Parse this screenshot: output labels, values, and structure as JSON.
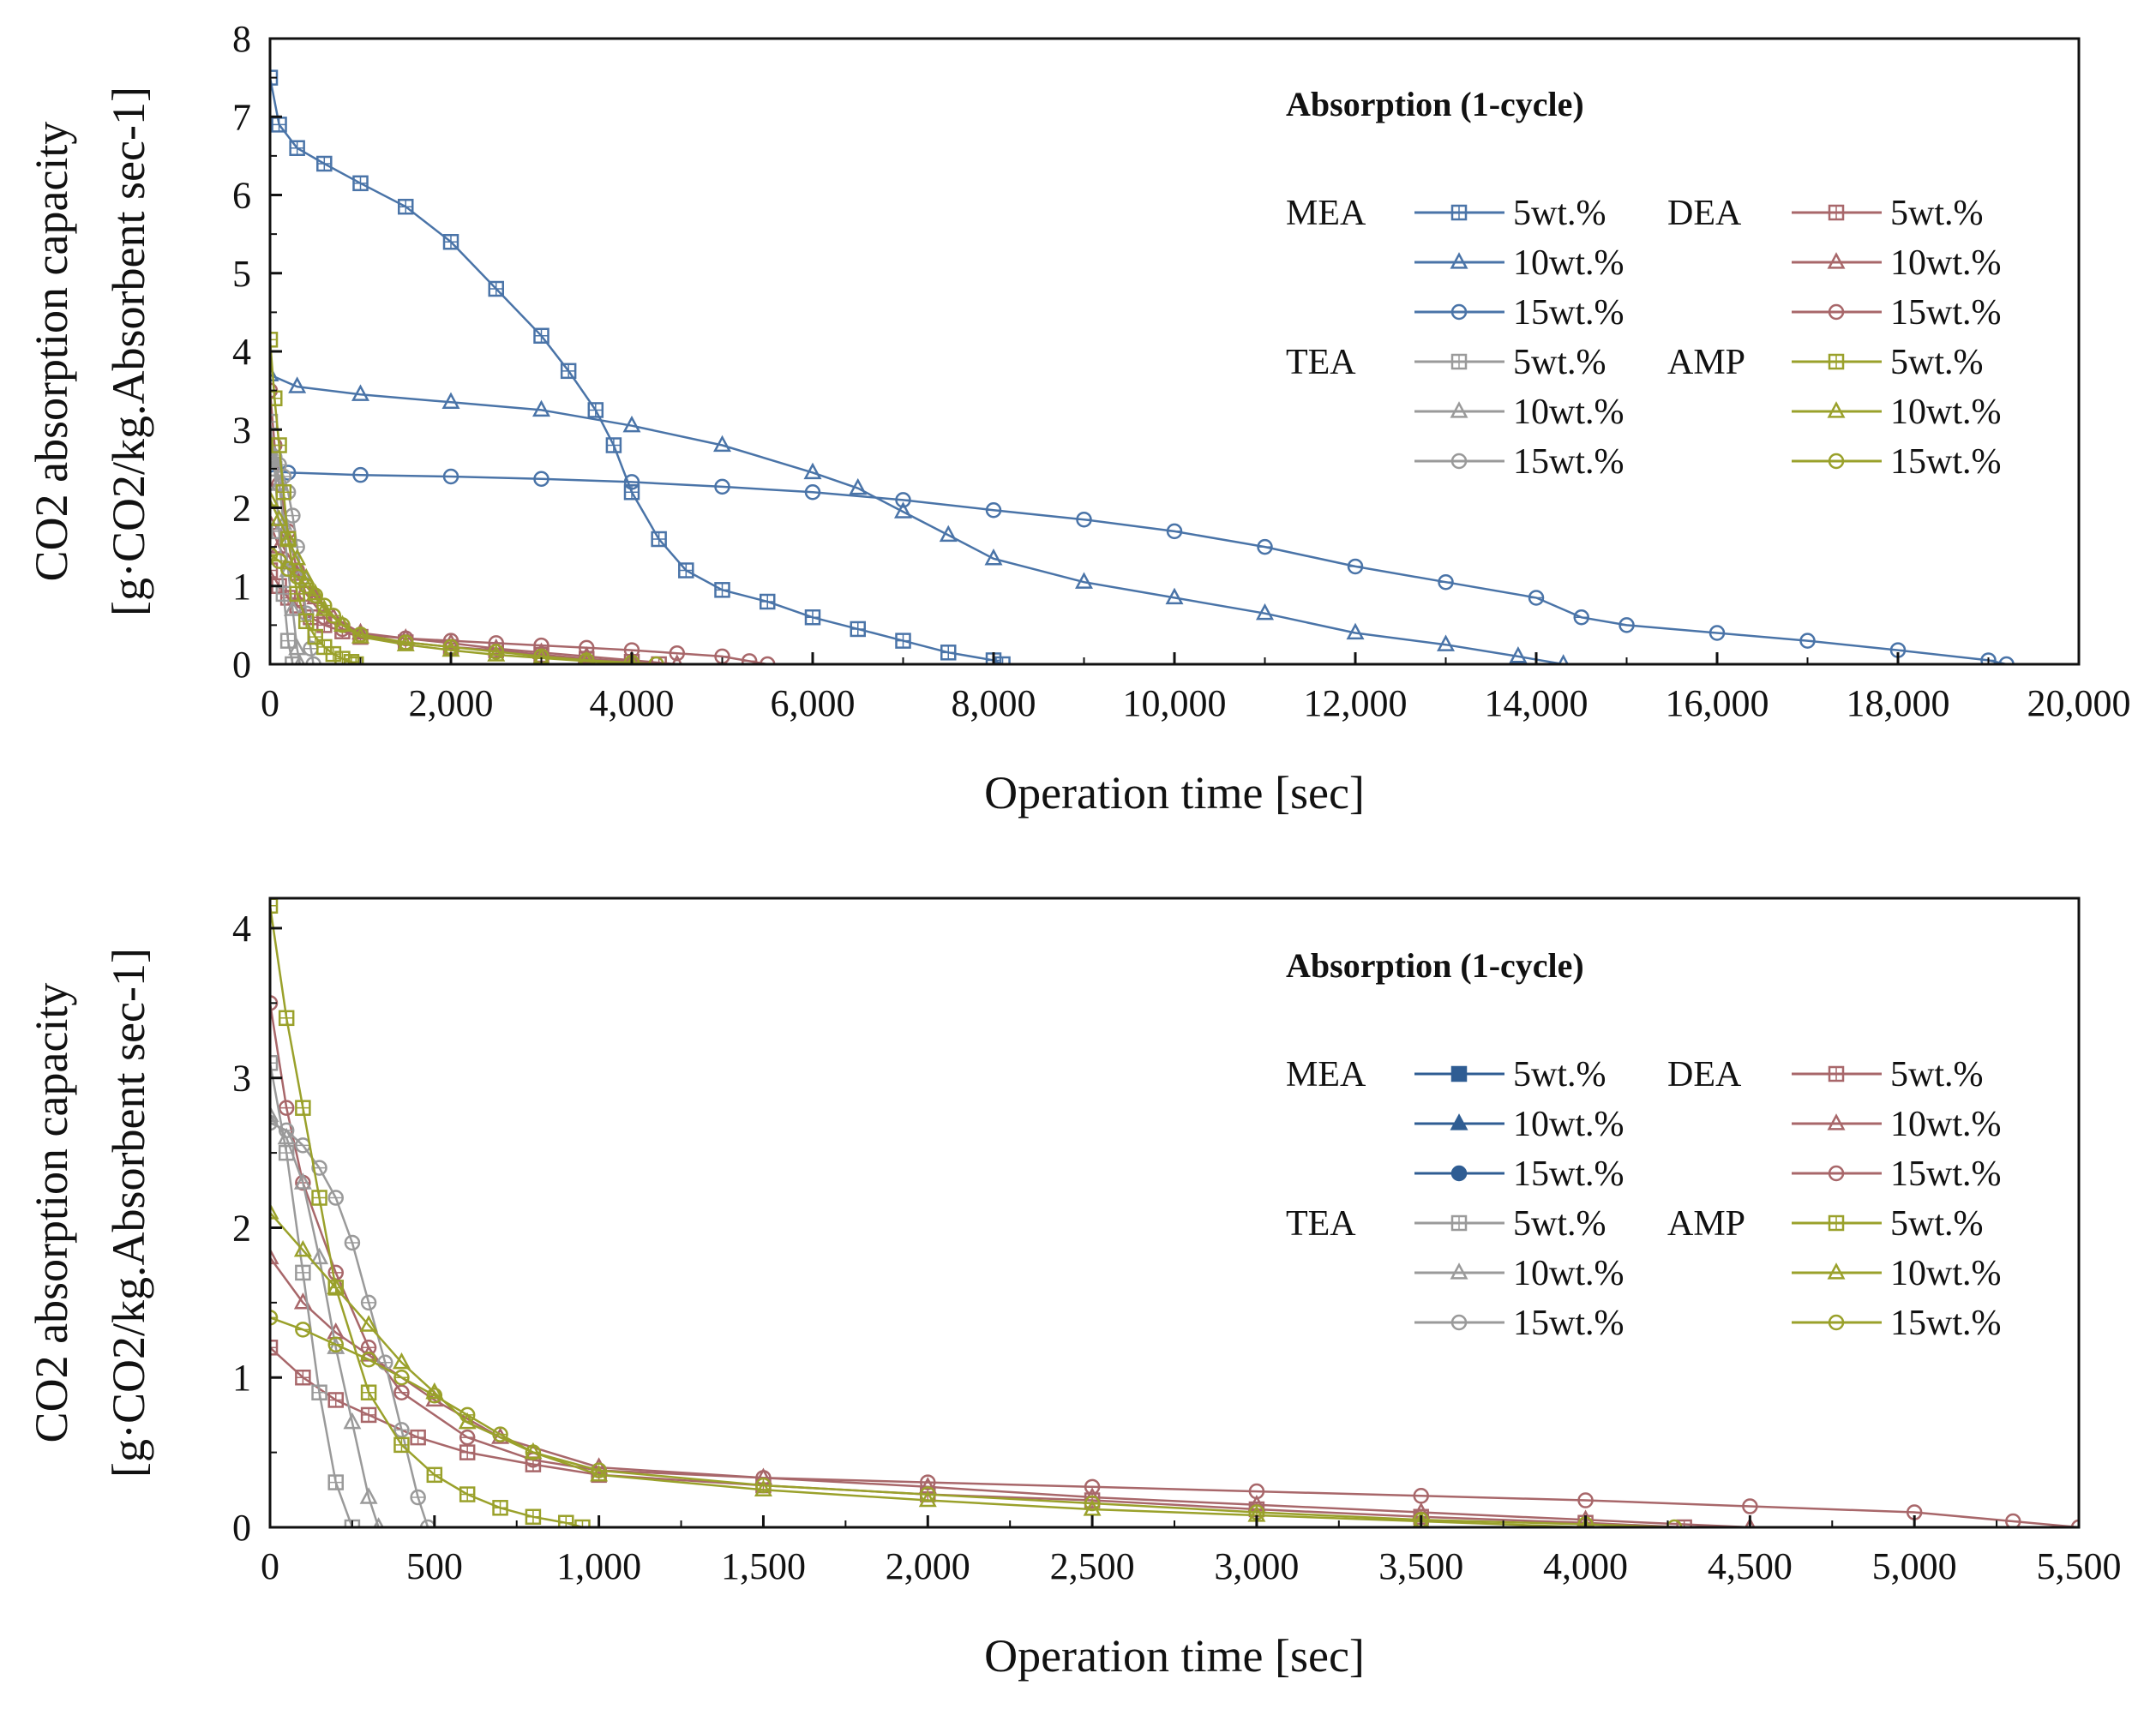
{
  "chart_data": [
    {
      "type": "line",
      "title": "",
      "xlabel": "Operation time [sec]",
      "ylabel_line1": "CO2 absorption capacity",
      "ylabel_line2": "[g·CO2/kg.Absorbent sec-1]",
      "xlim": [
        0,
        20000
      ],
      "ylim": [
        0,
        8
      ],
      "xticks": [
        0,
        2000,
        4000,
        6000,
        8000,
        10000,
        12000,
        14000,
        16000,
        18000,
        20000
      ],
      "xtick_labels": [
        "0",
        "2,000",
        "4,000",
        "6,000",
        "8,000",
        "10,000",
        "12,000",
        "14,000",
        "16,000",
        "18,000",
        "20,000"
      ],
      "yticks": [
        0,
        1,
        2,
        3,
        4,
        5,
        6,
        7,
        8
      ],
      "ytick_labels": [
        "0",
        "1",
        "2",
        "3",
        "4",
        "5",
        "6",
        "7",
        "8"
      ],
      "legend_title": "Absorption (1-cycle)",
      "legend_groups": [
        "MEA",
        "DEA",
        "TEA",
        "AMP"
      ],
      "series": [
        {
          "name": "MEA 5wt.%",
          "group": "MEA",
          "label": "5wt.%",
          "color": "#4a74a8",
          "marker": "square",
          "filled": false,
          "x": [
            0,
            100,
            300,
            600,
            1000,
            1500,
            2000,
            2500,
            3000,
            3300,
            3600,
            3800,
            4000,
            4300,
            4600,
            5000,
            5500,
            6000,
            6500,
            7000,
            7500,
            8000,
            8100
          ],
          "y": [
            7.5,
            6.9,
            6.6,
            6.4,
            6.15,
            5.85,
            5.4,
            4.8,
            4.2,
            3.75,
            3.25,
            2.8,
            2.2,
            1.6,
            1.2,
            0.95,
            0.8,
            0.6,
            0.45,
            0.3,
            0.15,
            0.05,
            0.0
          ]
        },
        {
          "name": "MEA 10wt.%",
          "group": "MEA",
          "label": "10wt.%",
          "color": "#4a74a8",
          "marker": "triangle",
          "filled": false,
          "x": [
            0,
            300,
            1000,
            2000,
            3000,
            4000,
            5000,
            6000,
            6500,
            7000,
            7500,
            8000,
            9000,
            10000,
            11000,
            12000,
            13000,
            13800,
            14300
          ],
          "y": [
            3.7,
            3.55,
            3.45,
            3.35,
            3.25,
            3.05,
            2.8,
            2.45,
            2.25,
            1.95,
            1.65,
            1.35,
            1.05,
            0.85,
            0.65,
            0.4,
            0.25,
            0.1,
            0.0
          ]
        },
        {
          "name": "MEA 15wt.%",
          "group": "MEA",
          "label": "15wt.%",
          "color": "#4a74a8",
          "marker": "circle",
          "filled": false,
          "x": [
            0,
            200,
            1000,
            2000,
            3000,
            4000,
            5000,
            6000,
            7000,
            8000,
            9000,
            10000,
            11000,
            12000,
            13000,
            14000,
            14500,
            15000,
            16000,
            17000,
            18000,
            19000,
            19200
          ],
          "y": [
            2.55,
            2.45,
            2.42,
            2.4,
            2.37,
            2.33,
            2.27,
            2.2,
            2.1,
            1.97,
            1.85,
            1.7,
            1.5,
            1.25,
            1.05,
            0.85,
            0.6,
            0.5,
            0.4,
            0.3,
            0.18,
            0.05,
            0.0
          ]
        },
        {
          "name": "DEA 5wt.%",
          "group": "DEA",
          "label": "5wt.%",
          "color": "#a8676a",
          "marker": "square",
          "filled": false,
          "x": [
            0,
            100,
            200,
            300,
            450,
            600,
            800,
            1000,
            1500,
            2000,
            2500,
            3000,
            3500,
            4000,
            4300
          ],
          "y": [
            1.2,
            1.0,
            0.85,
            0.75,
            0.6,
            0.5,
            0.42,
            0.35,
            0.28,
            0.22,
            0.18,
            0.12,
            0.07,
            0.03,
            0.0
          ]
        },
        {
          "name": "DEA 10wt.%",
          "group": "DEA",
          "label": "10wt.%",
          "color": "#a8676a",
          "marker": "triangle",
          "filled": false,
          "x": [
            0,
            100,
            200,
            300,
            500,
            700,
            1000,
            1500,
            2000,
            2500,
            3000,
            3500,
            4000,
            4500
          ],
          "y": [
            1.8,
            1.5,
            1.3,
            1.15,
            0.85,
            0.6,
            0.4,
            0.33,
            0.27,
            0.2,
            0.15,
            0.1,
            0.05,
            0.0
          ]
        },
        {
          "name": "DEA 15wt.%",
          "group": "DEA",
          "label": "15wt.%",
          "color": "#a8676a",
          "marker": "circle",
          "filled": false,
          "x": [
            0,
            50,
            100,
            200,
            300,
            400,
            600,
            800,
            1000,
            1500,
            2000,
            2500,
            3000,
            3500,
            4000,
            4500,
            5000,
            5300,
            5500
          ],
          "y": [
            3.5,
            2.8,
            2.3,
            1.7,
            1.2,
            0.9,
            0.6,
            0.45,
            0.38,
            0.33,
            0.3,
            0.27,
            0.24,
            0.21,
            0.18,
            0.14,
            0.1,
            0.04,
            0.0
          ]
        },
        {
          "name": "TEA 5wt.%",
          "group": "TEA",
          "label": "5wt.%",
          "color": "#9a9a9a",
          "marker": "square",
          "filled": false,
          "x": [
            0,
            50,
            100,
            150,
            200,
            250
          ],
          "y": [
            3.1,
            2.5,
            1.7,
            0.9,
            0.3,
            0.0
          ]
        },
        {
          "name": "TEA 10wt.%",
          "group": "TEA",
          "label": "10wt.%",
          "color": "#9a9a9a",
          "marker": "triangle",
          "filled": false,
          "x": [
            0,
            50,
            100,
            150,
            200,
            250,
            300,
            330
          ],
          "y": [
            2.75,
            2.6,
            2.3,
            1.8,
            1.2,
            0.7,
            0.2,
            0.0
          ]
        },
        {
          "name": "TEA 15wt.%",
          "group": "TEA",
          "label": "15wt.%",
          "color": "#9a9a9a",
          "marker": "circle",
          "filled": false,
          "x": [
            0,
            50,
            100,
            150,
            200,
            250,
            300,
            350,
            400,
            450,
            480
          ],
          "y": [
            2.7,
            2.65,
            2.55,
            2.4,
            2.2,
            1.9,
            1.5,
            1.1,
            0.65,
            0.2,
            0.0
          ]
        },
        {
          "name": "AMP 5wt.%",
          "group": "AMP",
          "label": "5wt.%",
          "color": "#9aa12b",
          "marker": "square",
          "filled": false,
          "x": [
            0,
            50,
            100,
            150,
            200,
            300,
            400,
            500,
            600,
            700,
            800,
            900,
            950
          ],
          "y": [
            4.15,
            3.4,
            2.8,
            2.2,
            1.6,
            0.9,
            0.55,
            0.35,
            0.22,
            0.13,
            0.07,
            0.03,
            0.0
          ]
        },
        {
          "name": "AMP 10wt.%",
          "group": "AMP",
          "label": "10wt.%",
          "color": "#9aa12b",
          "marker": "triangle",
          "filled": false,
          "x": [
            0,
            100,
            200,
            300,
            400,
            500,
            600,
            800,
            1000,
            1500,
            2000,
            2500,
            3000,
            3500,
            4000
          ],
          "y": [
            2.1,
            1.85,
            1.6,
            1.35,
            1.1,
            0.9,
            0.7,
            0.5,
            0.35,
            0.25,
            0.18,
            0.12,
            0.08,
            0.04,
            0.0
          ]
        },
        {
          "name": "AMP 15wt.%",
          "group": "AMP",
          "label": "15wt.%",
          "color": "#9aa12b",
          "marker": "circle",
          "filled": false,
          "x": [
            0,
            100,
            200,
            300,
            400,
            500,
            600,
            700,
            800,
            1000,
            1500,
            2000,
            2500,
            3000,
            3500,
            4000,
            4270
          ],
          "y": [
            1.4,
            1.32,
            1.22,
            1.12,
            1.0,
            0.88,
            0.75,
            0.62,
            0.5,
            0.38,
            0.28,
            0.22,
            0.16,
            0.1,
            0.05,
            0.02,
            0.0
          ]
        }
      ]
    },
    {
      "type": "line",
      "title": "",
      "xlabel": "Operation time [sec]",
      "ylabel_line1": "CO2 absorption capacity",
      "ylabel_line2": "[g·CO2/kg.Absorbent sec-1]",
      "xlim": [
        0,
        5500
      ],
      "ylim": [
        0,
        4.2
      ],
      "xticks": [
        0,
        500,
        1000,
        1500,
        2000,
        2500,
        3000,
        3500,
        4000,
        4500,
        5000,
        5500
      ],
      "xtick_labels": [
        "0",
        "500",
        "1,000",
        "1,500",
        "2,000",
        "2,500",
        "3,000",
        "3,500",
        "4,000",
        "4,500",
        "5,000",
        "5,500"
      ],
      "yticks": [
        0,
        1,
        2,
        3,
        4
      ],
      "ytick_labels": [
        "0",
        "1",
        "2",
        "3",
        "4"
      ],
      "legend_title": "Absorption (1-cycle)",
      "legend_groups": [
        "MEA",
        "DEA",
        "TEA",
        "AMP"
      ],
      "series": [
        {
          "name": "MEA 5wt.%",
          "group": "MEA",
          "label": "5wt.%",
          "color": "#2f5d93",
          "marker": "square",
          "filled": true,
          "x": [],
          "y": []
        },
        {
          "name": "MEA 10wt.%",
          "group": "MEA",
          "label": "10wt.%",
          "color": "#2f5d93",
          "marker": "triangle",
          "filled": true,
          "x": [],
          "y": []
        },
        {
          "name": "MEA 15wt.%",
          "group": "MEA",
          "label": "15wt.%",
          "color": "#2f5d93",
          "marker": "circle",
          "filled": true,
          "x": [],
          "y": []
        },
        {
          "name": "DEA 5wt.%",
          "group": "DEA",
          "label": "5wt.%",
          "color": "#a8676a",
          "marker": "square",
          "filled": false,
          "x": [
            0,
            100,
            200,
            300,
            450,
            600,
            800,
            1000,
            1500,
            2000,
            2500,
            3000,
            3500,
            4000,
            4300
          ],
          "y": [
            1.2,
            1.0,
            0.85,
            0.75,
            0.6,
            0.5,
            0.42,
            0.35,
            0.28,
            0.22,
            0.18,
            0.12,
            0.07,
            0.03,
            0.0
          ]
        },
        {
          "name": "DEA 10wt.%",
          "group": "DEA",
          "label": "10wt.%",
          "color": "#a8676a",
          "marker": "triangle",
          "filled": false,
          "x": [
            0,
            100,
            200,
            300,
            500,
            700,
            1000,
            1500,
            2000,
            2500,
            3000,
            3500,
            4000,
            4500
          ],
          "y": [
            1.8,
            1.5,
            1.3,
            1.15,
            0.85,
            0.6,
            0.4,
            0.33,
            0.27,
            0.2,
            0.15,
            0.1,
            0.05,
            0.0
          ]
        },
        {
          "name": "DEA 15wt.%",
          "group": "DEA",
          "label": "15wt.%",
          "color": "#a8676a",
          "marker": "circle",
          "filled": false,
          "x": [
            0,
            50,
            100,
            200,
            300,
            400,
            600,
            800,
            1000,
            1500,
            2000,
            2500,
            3000,
            3500,
            4000,
            4500,
            5000,
            5300,
            5500
          ],
          "y": [
            3.5,
            2.8,
            2.3,
            1.7,
            1.2,
            0.9,
            0.6,
            0.45,
            0.38,
            0.33,
            0.3,
            0.27,
            0.24,
            0.21,
            0.18,
            0.14,
            0.1,
            0.04,
            0.0
          ]
        },
        {
          "name": "TEA 5wt.%",
          "group": "TEA",
          "label": "5wt.%",
          "color": "#9a9a9a",
          "marker": "square",
          "filled": false,
          "x": [
            0,
            50,
            100,
            150,
            200,
            250
          ],
          "y": [
            3.1,
            2.5,
            1.7,
            0.9,
            0.3,
            0.0
          ]
        },
        {
          "name": "TEA 10wt.%",
          "group": "TEA",
          "label": "10wt.%",
          "color": "#9a9a9a",
          "marker": "triangle",
          "filled": false,
          "x": [
            0,
            50,
            100,
            150,
            200,
            250,
            300,
            330
          ],
          "y": [
            2.75,
            2.6,
            2.3,
            1.8,
            1.2,
            0.7,
            0.2,
            0.0
          ]
        },
        {
          "name": "TEA 15wt.%",
          "group": "TEA",
          "label": "15wt.%",
          "color": "#9a9a9a",
          "marker": "circle",
          "filled": false,
          "x": [
            0,
            50,
            100,
            150,
            200,
            250,
            300,
            350,
            400,
            450,
            480
          ],
          "y": [
            2.7,
            2.65,
            2.55,
            2.4,
            2.2,
            1.9,
            1.5,
            1.1,
            0.65,
            0.2,
            0.0
          ]
        },
        {
          "name": "AMP 5wt.%",
          "group": "AMP",
          "label": "5wt.%",
          "color": "#9aa12b",
          "marker": "square",
          "filled": false,
          "x": [
            0,
            50,
            100,
            150,
            200,
            300,
            400,
            500,
            600,
            700,
            800,
            900,
            950
          ],
          "y": [
            4.15,
            3.4,
            2.8,
            2.2,
            1.6,
            0.9,
            0.55,
            0.35,
            0.22,
            0.13,
            0.07,
            0.03,
            0.0
          ]
        },
        {
          "name": "AMP 10wt.%",
          "group": "AMP",
          "label": "10wt.%",
          "color": "#9aa12b",
          "marker": "triangle",
          "filled": false,
          "x": [
            0,
            100,
            200,
            300,
            400,
            500,
            600,
            800,
            1000,
            1500,
            2000,
            2500,
            3000,
            3500,
            4000
          ],
          "y": [
            2.1,
            1.85,
            1.6,
            1.35,
            1.1,
            0.9,
            0.7,
            0.5,
            0.35,
            0.25,
            0.18,
            0.12,
            0.08,
            0.04,
            0.0
          ]
        },
        {
          "name": "AMP 15wt.%",
          "group": "AMP",
          "label": "15wt.%",
          "color": "#9aa12b",
          "marker": "circle",
          "filled": false,
          "x": [
            0,
            100,
            200,
            300,
            400,
            500,
            600,
            700,
            800,
            1000,
            1500,
            2000,
            2500,
            3000,
            3500,
            4000,
            4270
          ],
          "y": [
            1.4,
            1.32,
            1.22,
            1.12,
            1.0,
            0.88,
            0.75,
            0.62,
            0.5,
            0.38,
            0.28,
            0.22,
            0.16,
            0.1,
            0.05,
            0.02,
            0.0
          ]
        }
      ]
    }
  ]
}
